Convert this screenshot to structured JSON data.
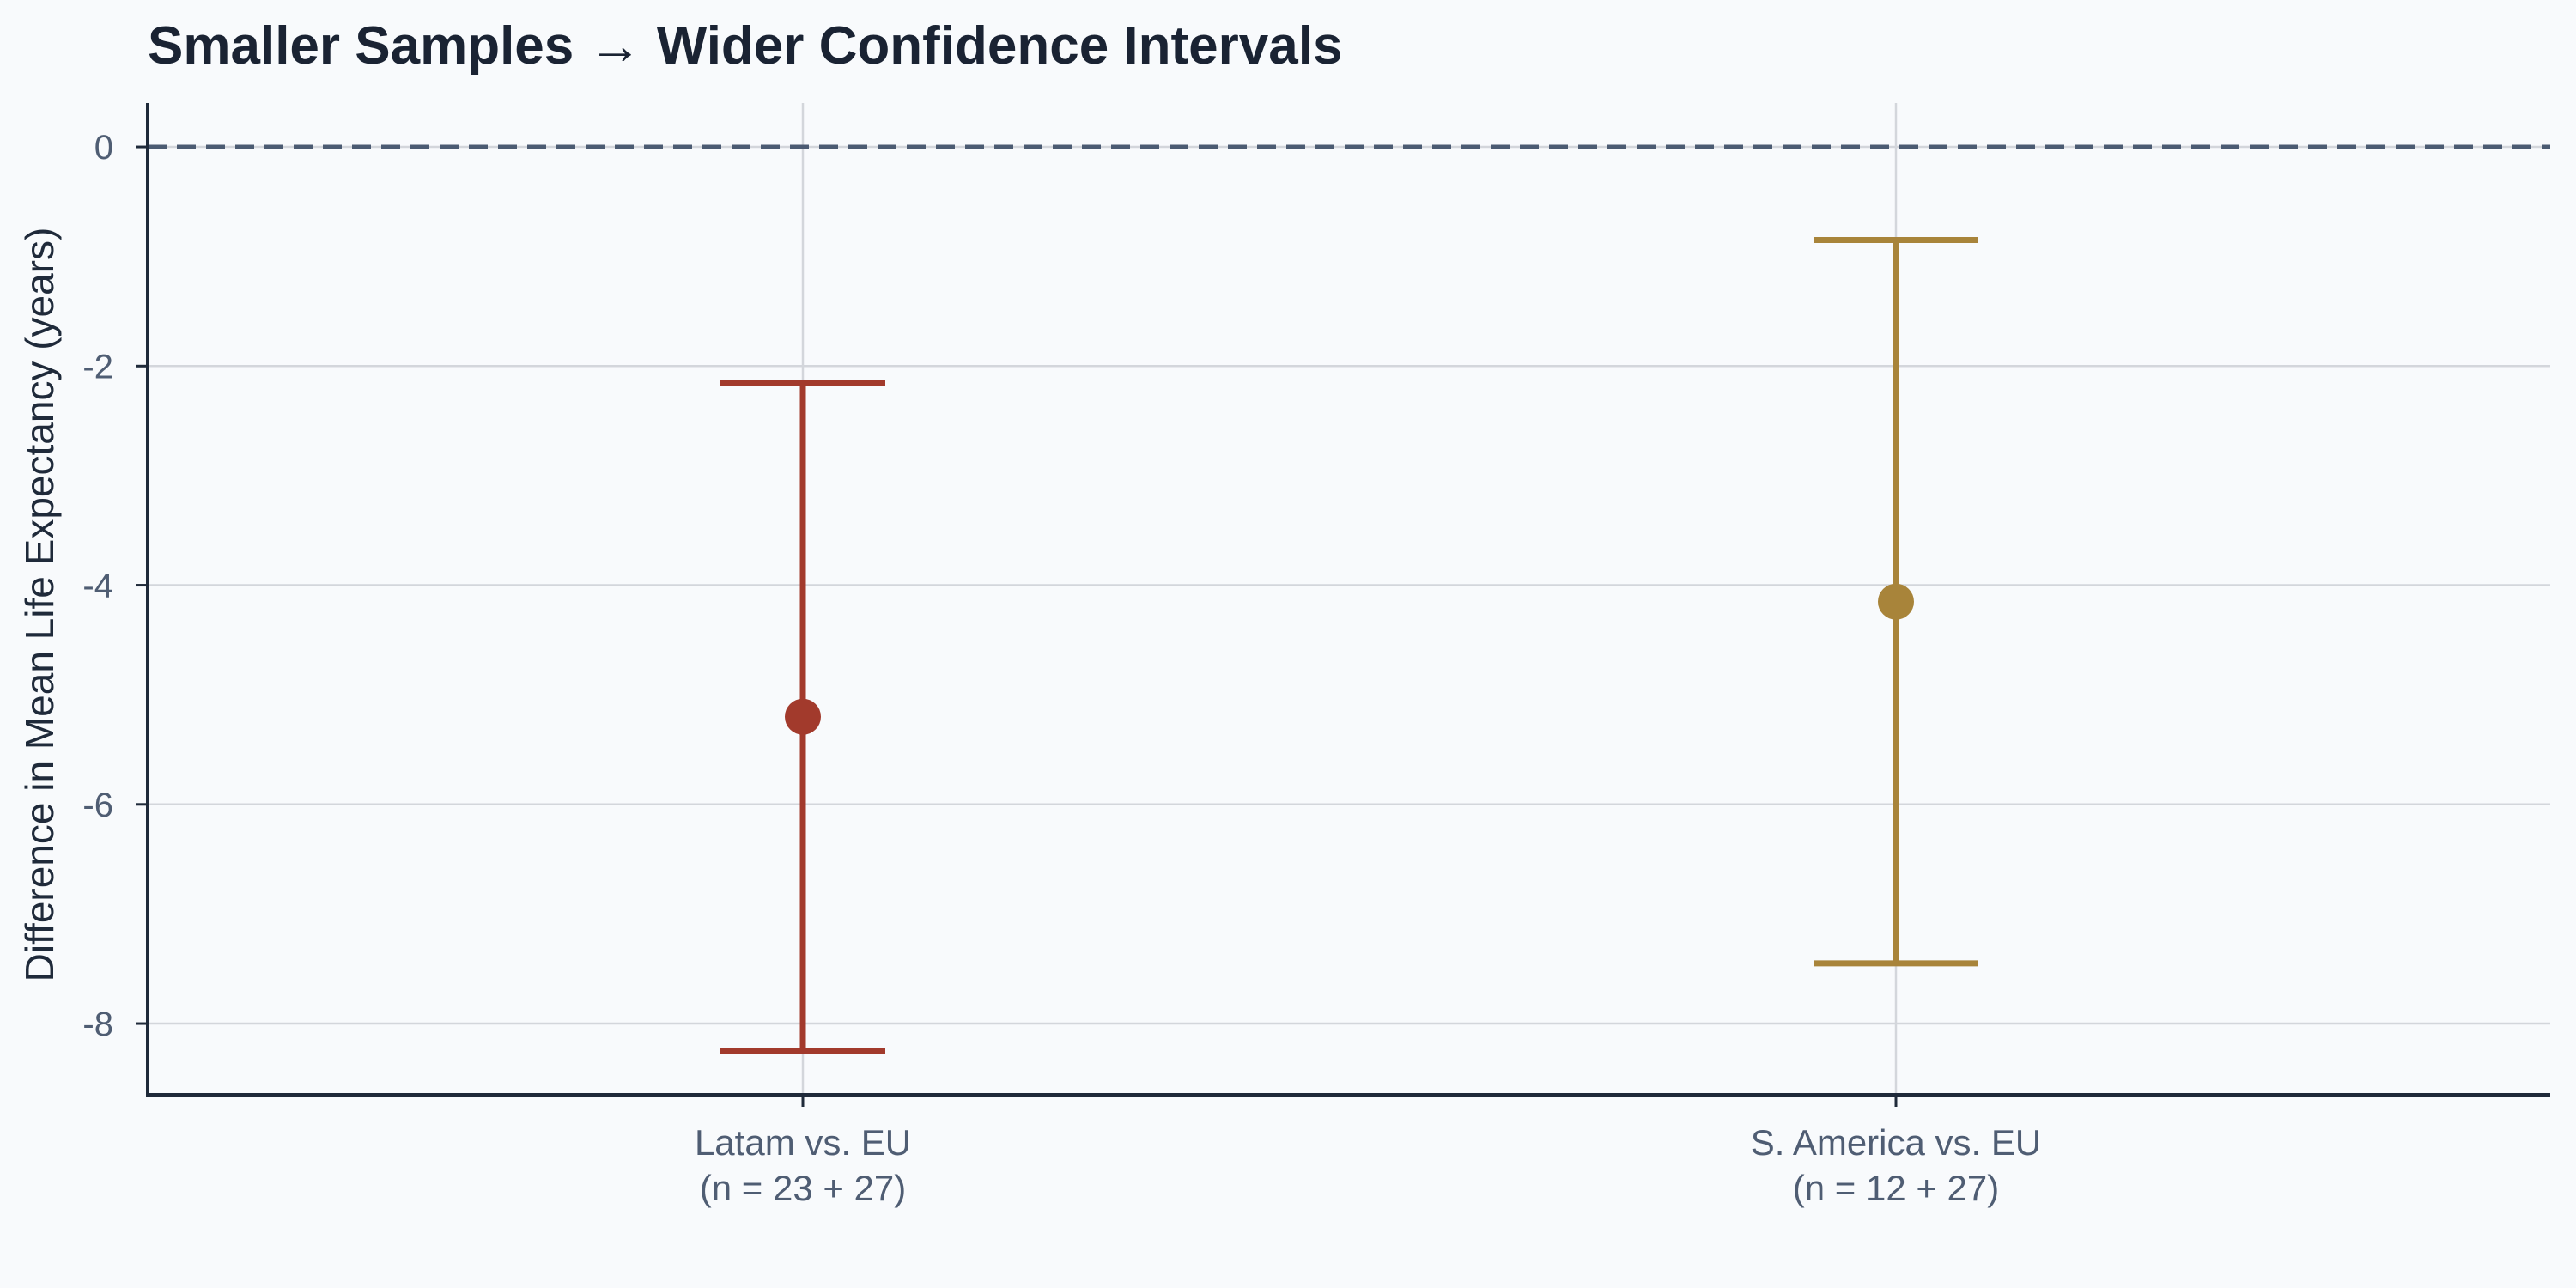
{
  "chart_data": {
    "type": "errorbar",
    "title": "Smaller Samples → Wider Confidence Intervals",
    "xlabel": "",
    "ylabel": "Difference in Mean Life Expectancy (years)",
    "ylim": [
      -8.65,
      0.4
    ],
    "yticks": [
      0,
      -2,
      -4,
      -6,
      -8
    ],
    "yticklabels": [
      "0",
      "-2",
      "-4",
      "-6",
      "-8"
    ],
    "reference_line": 0,
    "grid": true,
    "categories": [
      {
        "line1": "Latam vs. EU",
        "line2": "(n = 23 + 27)"
      },
      {
        "line1": "S. America vs. EU",
        "line2": "(n = 12 + 27)"
      }
    ],
    "points": [
      {
        "estimate": -5.2,
        "ci_low": -8.25,
        "ci_high": -2.15,
        "color": "#a23a2c"
      },
      {
        "estimate": -4.15,
        "ci_low": -7.45,
        "ci_high": -0.85,
        "color": "#a8843a"
      }
    ]
  }
}
